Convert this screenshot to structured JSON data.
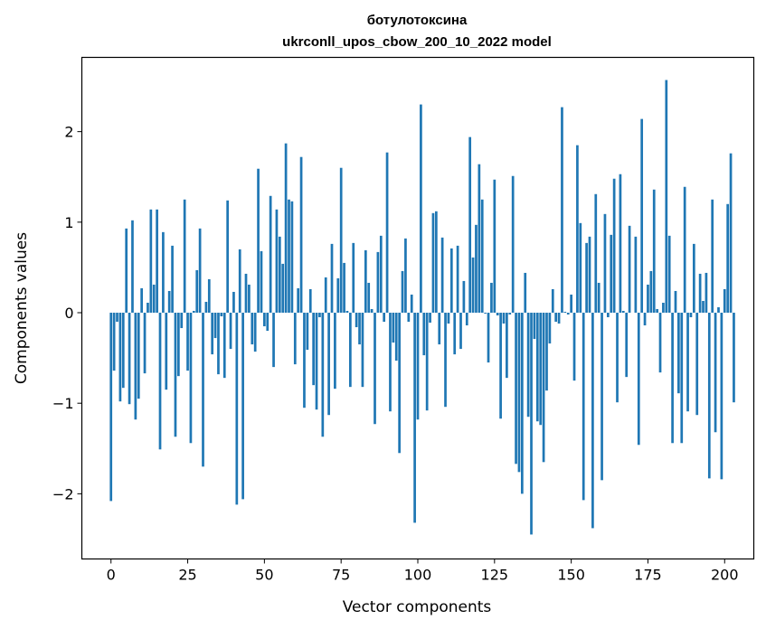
{
  "chart_data": {
    "type": "bar",
    "title": [
      "ботулотоксина",
      "ukrconll_upos_cbow_200_10_2022 model"
    ],
    "xlabel": "Vector components",
    "ylabel": "Components values",
    "xlim": [
      -9.5,
      209.5
    ],
    "ylim": [
      -2.72,
      2.82
    ],
    "xticks": [
      0,
      25,
      50,
      75,
      100,
      125,
      150,
      175,
      200
    ],
    "yticks": [
      -2,
      -1,
      0,
      1,
      2
    ],
    "ytick_labels": [
      "−2",
      "−1",
      "0",
      "1",
      "2"
    ],
    "bar_color": "#1f77b4",
    "grid": false,
    "x_start": 0,
    "values": [
      -2.08,
      -0.64,
      -0.1,
      -0.98,
      -0.83,
      0.93,
      -1.01,
      1.02,
      -1.18,
      -0.95,
      0.27,
      -0.67,
      0.11,
      1.14,
      0.31,
      1.14,
      -1.51,
      0.89,
      -0.85,
      0.24,
      0.74,
      -1.37,
      -0.7,
      -0.17,
      1.25,
      -0.64,
      -1.44,
      0.02,
      0.47,
      0.93,
      -1.7,
      0.12,
      0.37,
      -0.46,
      -0.28,
      -0.68,
      -0.04,
      -0.72,
      1.24,
      -0.4,
      0.23,
      -2.12,
      0.7,
      -2.06,
      0.43,
      0.31,
      -0.35,
      -0.43,
      1.59,
      0.68,
      -0.15,
      -0.2,
      1.29,
      -0.6,
      1.14,
      0.84,
      0.54,
      1.87,
      1.25,
      1.23,
      -0.57,
      0.27,
      1.72,
      -1.05,
      -0.41,
      0.26,
      -0.8,
      -1.07,
      -0.05,
      -1.37,
      0.39,
      -1.13,
      0.76,
      -0.84,
      0.38,
      1.6,
      0.55,
      0.02,
      -0.82,
      0.77,
      -0.16,
      -0.35,
      -0.82,
      0.69,
      0.33,
      0.04,
      -1.23,
      0.67,
      0.85,
      -0.1,
      1.77,
      -1.09,
      -0.33,
      -0.53,
      -1.55,
      0.46,
      0.82,
      -0.1,
      0.2,
      -2.32,
      -1.18,
      2.3,
      -0.47,
      -1.08,
      -0.11,
      1.1,
      1.12,
      -0.35,
      0.83,
      -1.04,
      -0.12,
      0.71,
      -0.46,
      0.74,
      -0.4,
      0.35,
      -0.14,
      1.94,
      0.61,
      0.97,
      1.64,
      1.25,
      -0.01,
      -0.55,
      0.33,
      1.47,
      -0.03,
      -1.17,
      -0.12,
      -0.72,
      -0.02,
      1.51,
      -1.67,
      -1.76,
      -2.0,
      0.44,
      -1.15,
      -2.45,
      -0.29,
      -1.2,
      -1.24,
      -1.65,
      -0.86,
      -0.34,
      0.26,
      -0.1,
      -0.12,
      2.27,
      0.01,
      -0.02,
      0.2,
      -0.75,
      1.85,
      0.99,
      -2.07,
      0.77,
      0.84,
      -2.38,
      1.31,
      0.33,
      -1.85,
      1.09,
      -0.05,
      0.86,
      1.48,
      -0.99,
      1.53,
      0.02,
      -0.71,
      0.96,
      0.0,
      0.84,
      -1.46,
      2.14,
      -0.14,
      0.31,
      0.46,
      1.36,
      0.04,
      -0.66,
      0.11,
      2.57,
      0.85,
      -1.44,
      0.24,
      -0.89,
      -1.44,
      1.39,
      -1.09,
      -0.05,
      0.76,
      -1.13,
      0.43,
      0.13,
      0.44,
      -1.83,
      1.25,
      -1.32,
      0.06,
      -1.84,
      0.26,
      1.2,
      1.76,
      -0.99
    ]
  }
}
